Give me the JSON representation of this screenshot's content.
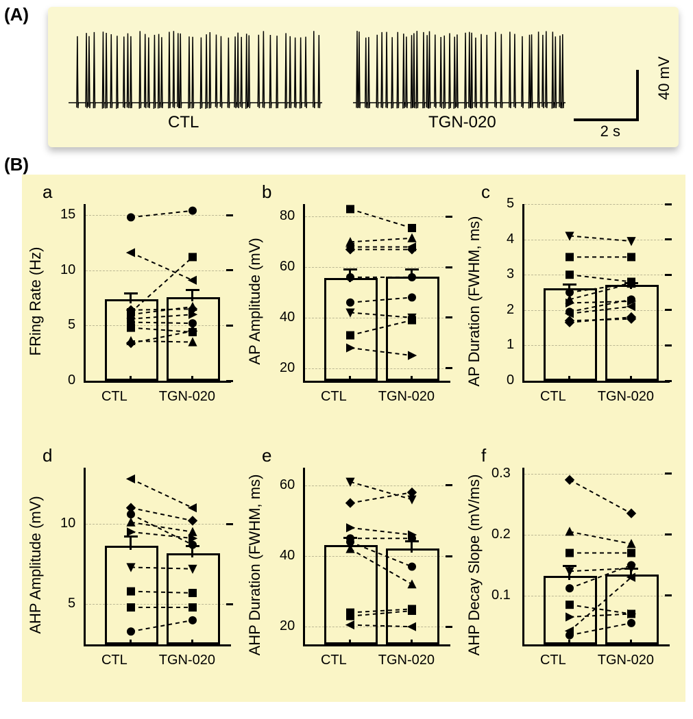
{
  "labels": {
    "A": "(A)",
    "B": "(B)"
  },
  "colors": {
    "panel_bg": "#faf7d0",
    "grid_bg": "#faf5c6",
    "axis": "#000000"
  },
  "panelA": {
    "traces": {
      "ctl_label": "CTL",
      "tgn_label": "TGN-020"
    },
    "scalebar": {
      "h_label": "2 s",
      "v_label": "40 mV"
    }
  },
  "subplots": {
    "a": {
      "label": "a",
      "ylabel": "FRing Rate (Hz)",
      "ylim": [
        0,
        16
      ],
      "yticks": [
        0,
        5,
        10,
        15
      ],
      "xlabels": [
        "CTL",
        "TGN-020"
      ],
      "bars": [
        {
          "x": 0,
          "mean": 7.0,
          "sem": 1.0
        },
        {
          "x": 1,
          "mean": 7.2,
          "sem": 1.1
        }
      ],
      "pairs": [
        {
          "m": "circle",
          "y": [
            14.8,
            15.4
          ]
        },
        {
          "m": "tri-left",
          "y": [
            11.6,
            9.1
          ]
        },
        {
          "m": "square",
          "y": [
            6.2,
            11.2
          ]
        },
        {
          "m": "diamond",
          "y": [
            6.4,
            6.5
          ]
        },
        {
          "m": "tri-up",
          "y": [
            6.0,
            6.7
          ]
        },
        {
          "m": "tri-right",
          "y": [
            5.6,
            6.0
          ]
        },
        {
          "m": "circle-2",
          "y": [
            5.3,
            5.2
          ]
        },
        {
          "m": "square-2",
          "y": [
            4.8,
            4.4
          ]
        },
        {
          "m": "triangle-2",
          "y": [
            3.6,
            3.5
          ]
        },
        {
          "m": "diamond-2",
          "y": [
            3.4,
            4.5
          ]
        }
      ]
    },
    "b": {
      "label": "b",
      "ylabel": "AP Amplitude (mV)",
      "ylim": [
        15,
        85
      ],
      "yticks": [
        20,
        40,
        60,
        80
      ],
      "xlabels": [
        "CTL",
        "TGN-020"
      ],
      "bars": [
        {
          "x": 0,
          "mean": 54,
          "sem": 5.5
        },
        {
          "x": 1,
          "mean": 54.5,
          "sem": 5
        }
      ],
      "pairs": [
        {
          "m": "square",
          "y": [
            83,
            75.5
          ]
        },
        {
          "m": "tri-up",
          "y": [
            70,
            71.5
          ]
        },
        {
          "m": "tri-left",
          "y": [
            68,
            68
          ]
        },
        {
          "m": "diamond",
          "y": [
            67,
            67
          ]
        },
        {
          "m": "circle",
          "y": [
            56,
            56
          ]
        },
        {
          "m": "circle-2",
          "y": [
            46,
            48
          ]
        },
        {
          "m": "tri-down",
          "y": [
            42,
            40
          ]
        },
        {
          "m": "square-2",
          "y": [
            33,
            39
          ]
        },
        {
          "m": "tri-right",
          "y": [
            28,
            25
          ]
        }
      ]
    },
    "c": {
      "label": "c",
      "ylabel": "AP Duration (FWHM, ms)",
      "ylim": [
        0,
        5
      ],
      "yticks": [
        0,
        1,
        2,
        3,
        4,
        5
      ],
      "xlabels": [
        "CTL",
        "TGN-020"
      ],
      "bars": [
        {
          "x": 0,
          "mean": 2.5,
          "sem": 0.25
        },
        {
          "x": 1,
          "mean": 2.6,
          "sem": 0.2
        }
      ],
      "pairs": [
        {
          "m": "tri-down",
          "y": [
            4.1,
            3.95
          ]
        },
        {
          "m": "square",
          "y": [
            3.5,
            3.5
          ]
        },
        {
          "m": "square-2",
          "y": [
            3.0,
            2.8
          ]
        },
        {
          "m": "circle",
          "y": [
            2.5,
            2.75
          ]
        },
        {
          "m": "tri-up",
          "y": [
            2.3,
            2.75
          ]
        },
        {
          "m": "tri-right",
          "y": [
            2.2,
            2.25
          ]
        },
        {
          "m": "circle-2",
          "y": [
            1.95,
            2.3
          ]
        },
        {
          "m": "tri-left",
          "y": [
            1.9,
            2.1
          ]
        },
        {
          "m": "diamond-2",
          "y": [
            1.7,
            1.75
          ]
        },
        {
          "m": "diamond",
          "y": [
            1.65,
            1.8
          ]
        }
      ]
    },
    "d": {
      "label": "d",
      "ylabel": "AHP Amplitude (mV)",
      "ylim": [
        2.5,
        13.5
      ],
      "yticks": [
        5,
        10
      ],
      "xlabels": [
        "CTL",
        "TGN-020"
      ],
      "bars": [
        {
          "x": 0,
          "mean": 8.4,
          "sem": 0.9
        },
        {
          "x": 1,
          "mean": 7.9,
          "sem": 0.8
        }
      ],
      "pairs": [
        {
          "m": "tri-left",
          "y": [
            12.8,
            11.0
          ]
        },
        {
          "m": "diamond",
          "y": [
            11.0,
            10.2
          ]
        },
        {
          "m": "circle-2",
          "y": [
            10.6,
            8.7
          ]
        },
        {
          "m": "tri-up",
          "y": [
            10.1,
            9.5
          ]
        },
        {
          "m": "tri-right",
          "y": [
            9.5,
            9.1
          ]
        },
        {
          "m": "tri-down",
          "y": [
            7.3,
            7.2
          ]
        },
        {
          "m": "square-2",
          "y": [
            5.8,
            5.7
          ]
        },
        {
          "m": "square",
          "y": [
            4.8,
            4.8
          ]
        },
        {
          "m": "circle",
          "y": [
            3.3,
            4.0
          ]
        }
      ]
    },
    "e": {
      "label": "e",
      "ylabel": "AHP Duration (FWHM, ms)",
      "ylim": [
        15,
        65
      ],
      "yticks": [
        20,
        40,
        60
      ],
      "xlabels": [
        "CTL",
        "TGN-020"
      ],
      "bars": [
        {
          "x": 0,
          "mean": 42,
          "sem": 3.5
        },
        {
          "x": 1,
          "mean": 41,
          "sem": 3.5
        }
      ],
      "pairs": [
        {
          "m": "tri-down",
          "y": [
            61,
            56
          ]
        },
        {
          "m": "diamond",
          "y": [
            55,
            58
          ]
        },
        {
          "m": "tri-right",
          "y": [
            48,
            46
          ]
        },
        {
          "m": "circle",
          "y": [
            45,
            45
          ]
        },
        {
          "m": "circle-2",
          "y": [
            44,
            37
          ]
        },
        {
          "m": "tri-up",
          "y": [
            42,
            32
          ]
        },
        {
          "m": "square",
          "y": [
            24,
            25
          ]
        },
        {
          "m": "square-2",
          "y": [
            23,
            24.5
          ]
        },
        {
          "m": "tri-left",
          "y": [
            20.5,
            20
          ]
        }
      ]
    },
    "f": {
      "label": "f",
      "ylabel": "AHP Decay Slope (mV/ms)",
      "ylim": [
        0.02,
        0.31
      ],
      "yticks": [
        0.1,
        0.2,
        0.3
      ],
      "xlabels": [
        "CTL",
        "TGN-020"
      ],
      "bars": [
        {
          "x": 0,
          "mean": 0.126,
          "sem": 0.024
        },
        {
          "x": 1,
          "mean": 0.128,
          "sem": 0.018
        }
      ],
      "pairs": [
        {
          "m": "diamond",
          "y": [
            0.29,
            0.235
          ]
        },
        {
          "m": "tri-up",
          "y": [
            0.205,
            0.185
          ]
        },
        {
          "m": "square",
          "y": [
            0.17,
            0.17
          ]
        },
        {
          "m": "tri-down",
          "y": [
            0.14,
            0.145
          ]
        },
        {
          "m": "circle-2",
          "y": [
            0.112,
            0.15
          ]
        },
        {
          "m": "square-2",
          "y": [
            0.085,
            0.07
          ]
        },
        {
          "m": "tri-right",
          "y": [
            0.065,
            0.07
          ]
        },
        {
          "m": "tri-left",
          "y": [
            0.042,
            0.13
          ]
        },
        {
          "m": "circle",
          "y": [
            0.035,
            0.055
          ]
        }
      ]
    }
  }
}
